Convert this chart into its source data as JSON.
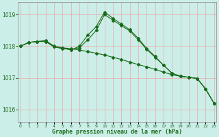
{
  "title": "Graphe pression niveau de la mer (hPa)",
  "background_color": "#cceee8",
  "grid_color": "#e8a8a8",
  "line_color": "#1a6b1a",
  "ylim": [
    1015.6,
    1019.4
  ],
  "yticks": [
    1016,
    1017,
    1018,
    1019
  ],
  "xlim": [
    -0.3,
    23.3
  ],
  "hours": [
    0,
    1,
    2,
    3,
    4,
    5,
    6,
    7,
    8,
    9,
    10,
    11,
    12,
    13,
    14,
    15,
    16,
    17,
    18,
    19,
    20,
    21,
    22,
    23
  ],
  "line1": [
    1018.0,
    1018.12,
    1018.15,
    1018.15,
    1017.98,
    1017.95,
    1017.92,
    1017.88,
    1017.83,
    1017.78,
    1017.72,
    1017.65,
    1017.58,
    1017.5,
    1017.42,
    1017.35,
    1017.27,
    1017.18,
    1017.1,
    1017.05,
    1017.02,
    1016.98,
    1016.65,
    1016.2
  ],
  "line2": [
    1018.0,
    1018.12,
    1018.15,
    1018.15,
    1017.98,
    1017.92,
    1017.9,
    1017.95,
    1018.2,
    1018.5,
    1019.0,
    1018.82,
    1018.65,
    1018.48,
    1018.2,
    1017.9,
    1017.65,
    1017.4,
    1017.15,
    1017.05,
    1017.02,
    1016.98,
    1016.65,
    1016.2
  ],
  "line3": [
    1018.0,
    1018.12,
    1018.15,
    1018.18,
    1018.0,
    1017.95,
    1017.88,
    1018.0,
    1018.35,
    1018.62,
    1019.08,
    1018.88,
    1018.7,
    1018.52,
    1018.25,
    1017.93,
    1017.68,
    1017.4,
    1017.15,
    1017.05,
    1017.02,
    1016.98,
    1016.65,
    1016.2
  ]
}
